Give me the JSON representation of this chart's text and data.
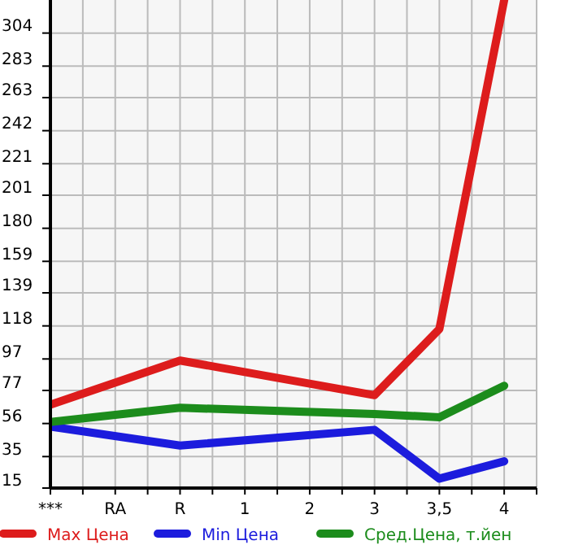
{
  "chart_data": {
    "type": "line",
    "categories": [
      "***",
      "RA",
      "R",
      "1",
      "2",
      "3",
      "3,5",
      "4"
    ],
    "series": [
      {
        "name": "Max Цена",
        "color": "#dd1c1c",
        "values": [
          68,
          null,
          96,
          null,
          null,
          74,
          116,
          325
        ]
      },
      {
        "name": "Min Цена",
        "color": "#1c1cdd",
        "values": [
          54,
          null,
          42,
          null,
          null,
          52,
          21,
          32
        ]
      },
      {
        "name": "Сред.Цена, т.йен",
        "color": "#1c8c1c",
        "values": [
          57,
          null,
          66,
          null,
          null,
          62,
          60,
          80
        ]
      }
    ],
    "ylim": [
      15,
      325
    ],
    "yticks": [
      15,
      35,
      56,
      77,
      97,
      118,
      139,
      159,
      180,
      201,
      221,
      242,
      263,
      283,
      304
    ],
    "grid": true,
    "legend": "bottom",
    "line_style": "solid"
  }
}
